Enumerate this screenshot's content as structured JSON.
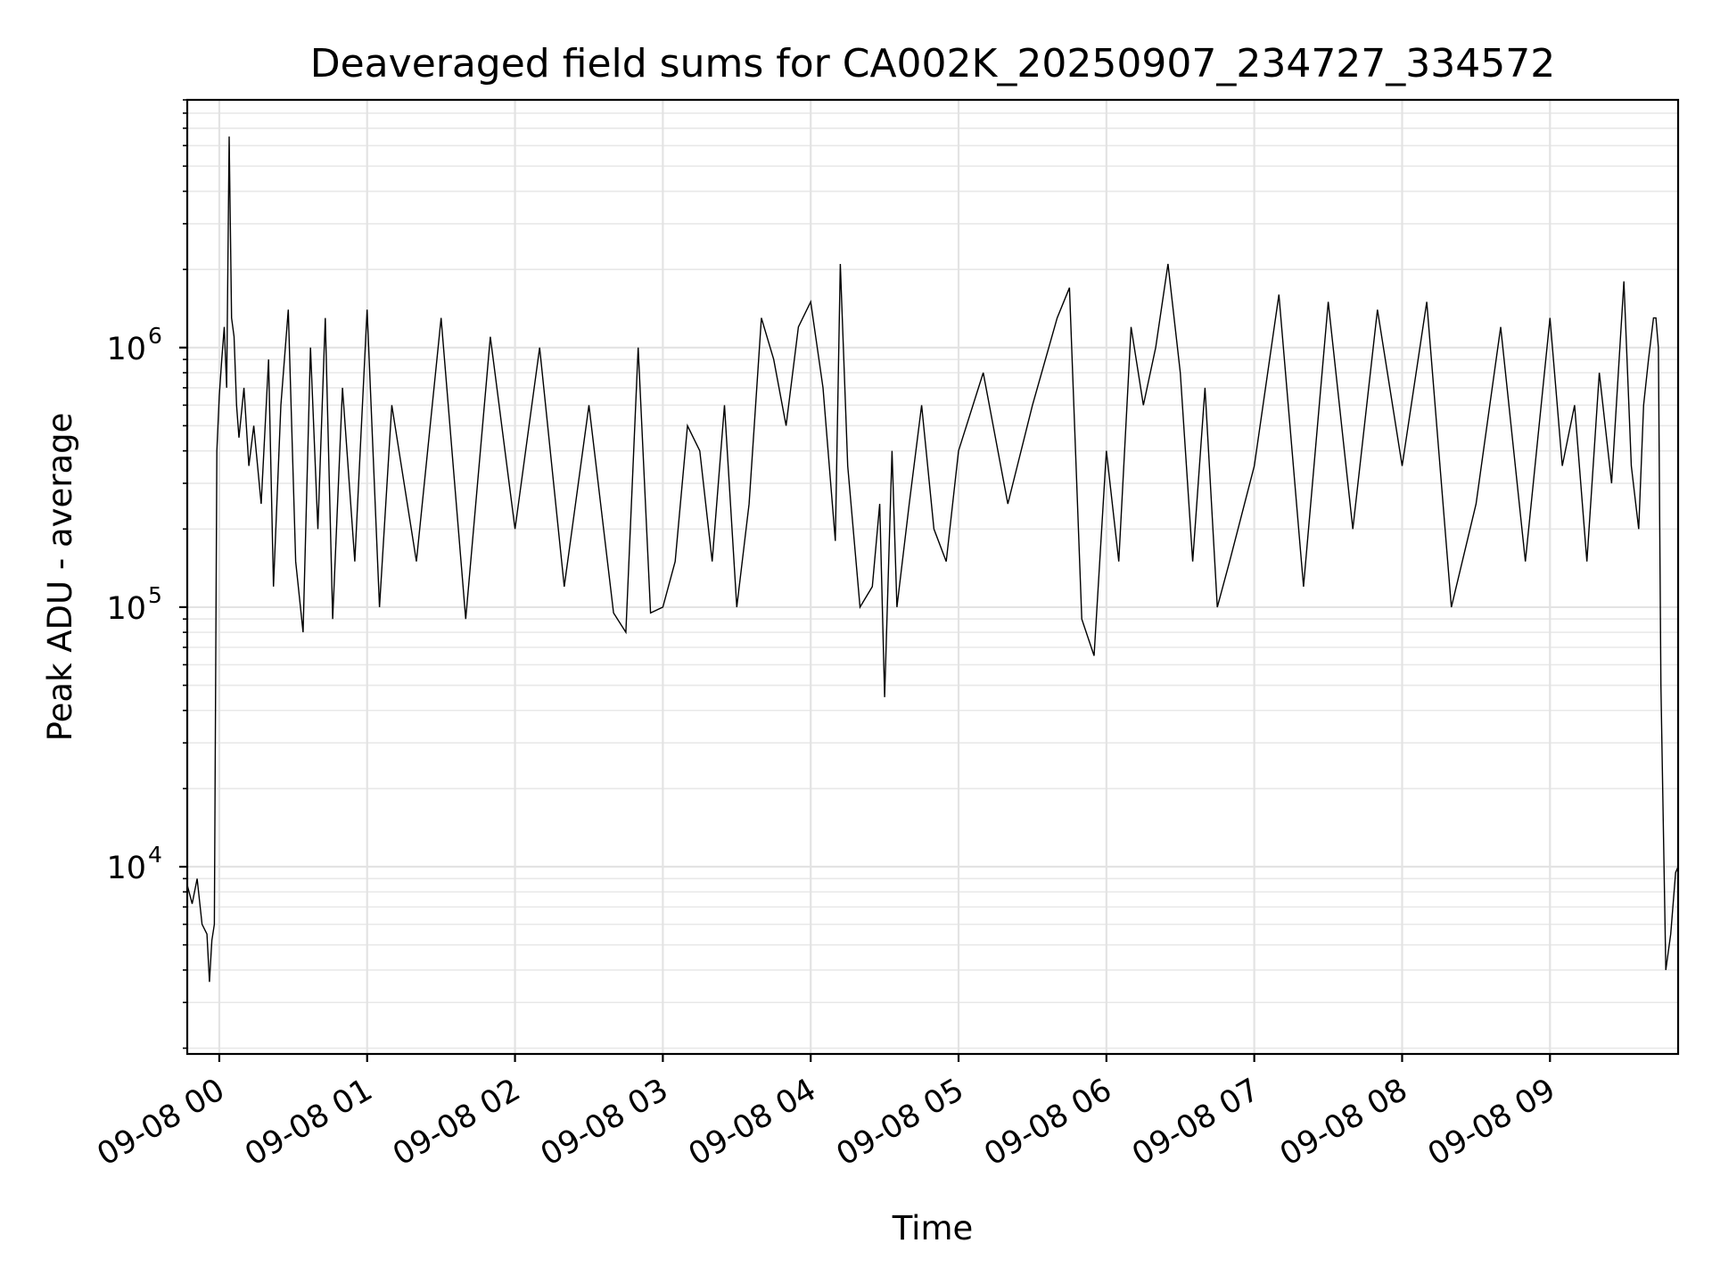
{
  "chart_data": {
    "type": "line",
    "title": "Deaveraged field sums for CA002K_20250907_234727_334572",
    "xlabel": "Time",
    "ylabel": "Peak ADU - average",
    "yscale": "log",
    "ylim": [
      1900,
      9000000
    ],
    "xlim": [
      "09-07 23:47",
      "09-08 09:52"
    ],
    "grid": true,
    "line_color": "#000000",
    "x_ticks": [
      "09-08 00",
      "09-08 01",
      "09-08 02",
      "09-08 03",
      "09-08 04",
      "09-08 05",
      "09-08 06",
      "09-08 07",
      "09-08 08",
      "09-08 09"
    ],
    "y_ticks": [
      {
        "value": 10000,
        "base": "10",
        "exp": "4"
      },
      {
        "value": 100000,
        "base": "10",
        "exp": "5"
      },
      {
        "value": 1000000,
        "base": "10",
        "exp": "6"
      }
    ],
    "series": [
      {
        "x": [
          "09-07 23:47",
          "09-07 23:49",
          "09-07 23:51",
          "09-07 23:53",
          "09-07 23:55",
          "09-07 23:56",
          "09-07 23:57",
          "09-07 23:58",
          "09-07 23:59",
          "09-08 00:00",
          "09-08 00:01",
          "09-08 00:02",
          "09-08 00:03",
          "09-08 00:04",
          "09-08 00:05",
          "09-08 00:06",
          "09-08 00:07",
          "09-08 00:08",
          "09-08 00:10",
          "09-08 00:12",
          "09-08 00:14",
          "09-08 00:17",
          "09-08 00:20",
          "09-08 00:22",
          "09-08 00:25",
          "09-08 00:28",
          "09-08 00:31",
          "09-08 00:34",
          "09-08 00:37",
          "09-08 00:40",
          "09-08 00:43",
          "09-08 00:46",
          "09-08 00:50",
          "09-08 00:55",
          "09-08 01:00",
          "09-08 01:05",
          "09-08 01:10",
          "09-08 01:20",
          "09-08 01:30",
          "09-08 01:40",
          "09-08 01:50",
          "09-08 02:00",
          "09-08 02:10",
          "09-08 02:20",
          "09-08 02:30",
          "09-08 02:40",
          "09-08 02:45",
          "09-08 02:50",
          "09-08 02:55",
          "09-08 03:00",
          "09-08 03:05",
          "09-08 03:10",
          "09-08 03:15",
          "09-08 03:20",
          "09-08 03:25",
          "09-08 03:30",
          "09-08 03:35",
          "09-08 03:40",
          "09-08 03:45",
          "09-08 03:50",
          "09-08 03:55",
          "09-08 04:00",
          "09-08 04:05",
          "09-08 04:10",
          "09-08 04:12",
          "09-08 04:15",
          "09-08 04:20",
          "09-08 04:25",
          "09-08 04:28",
          "09-08 04:30",
          "09-08 04:33",
          "09-08 04:35",
          "09-08 04:40",
          "09-08 04:45",
          "09-08 04:50",
          "09-08 04:55",
          "09-08 05:00",
          "09-08 05:10",
          "09-08 05:20",
          "09-08 05:30",
          "09-08 05:40",
          "09-08 05:45",
          "09-08 05:50",
          "09-08 05:55",
          "09-08 06:00",
          "09-08 06:05",
          "09-08 06:10",
          "09-08 06:15",
          "09-08 06:20",
          "09-08 06:25",
          "09-08 06:30",
          "09-08 06:35",
          "09-08 06:40",
          "09-08 06:45",
          "09-08 06:50",
          "09-08 07:00",
          "09-08 07:10",
          "09-08 07:20",
          "09-08 07:30",
          "09-08 07:40",
          "09-08 07:50",
          "09-08 08:00",
          "09-08 08:10",
          "09-08 08:20",
          "09-08 08:30",
          "09-08 08:40",
          "09-08 08:50",
          "09-08 09:00",
          "09-08 09:05",
          "09-08 09:10",
          "09-08 09:15",
          "09-08 09:20",
          "09-08 09:25",
          "09-08 09:30",
          "09-08 09:33",
          "09-08 09:36",
          "09-08 09:38",
          "09-08 09:40",
          "09-08 09:42",
          "09-08 09:43",
          "09-08 09:44",
          "09-08 09:45",
          "09-08 09:47",
          "09-08 09:49",
          "09-08 09:51",
          "09-08 09:52"
        ],
        "y": [
          8500,
          7200,
          9000,
          6000,
          5500,
          3600,
          5200,
          6000,
          400000,
          650000,
          900000,
          1200000,
          700000,
          6500000,
          1300000,
          1100000,
          600000,
          450000,
          700000,
          350000,
          500000,
          250000,
          900000,
          120000,
          600000,
          1400000,
          150000,
          80000,
          1000000,
          200000,
          1300000,
          90000,
          700000,
          150000,
          1400000,
          100000,
          600000,
          150000,
          1300000,
          90000,
          1100000,
          200000,
          1000000,
          120000,
          600000,
          95000,
          80000,
          1000000,
          95000,
          100000,
          150000,
          500000,
          400000,
          150000,
          600000,
          100000,
          250000,
          1300000,
          900000,
          500000,
          1200000,
          1500000,
          700000,
          180000,
          2100000,
          350000,
          100000,
          120000,
          250000,
          45000,
          400000,
          100000,
          250000,
          600000,
          200000,
          150000,
          400000,
          800000,
          250000,
          600000,
          1300000,
          1700000,
          90000,
          65000,
          400000,
          150000,
          1200000,
          600000,
          1000000,
          2100000,
          800000,
          150000,
          700000,
          100000,
          150000,
          350000,
          1600000,
          120000,
          1500000,
          200000,
          1400000,
          350000,
          1500000,
          100000,
          250000,
          1200000,
          150000,
          1300000,
          350000,
          600000,
          150000,
          800000,
          300000,
          1800000,
          350000,
          200000,
          600000,
          900000,
          1300000,
          1300000,
          1000000,
          50000,
          4000,
          5500,
          9500,
          10000
        ]
      }
    ]
  }
}
